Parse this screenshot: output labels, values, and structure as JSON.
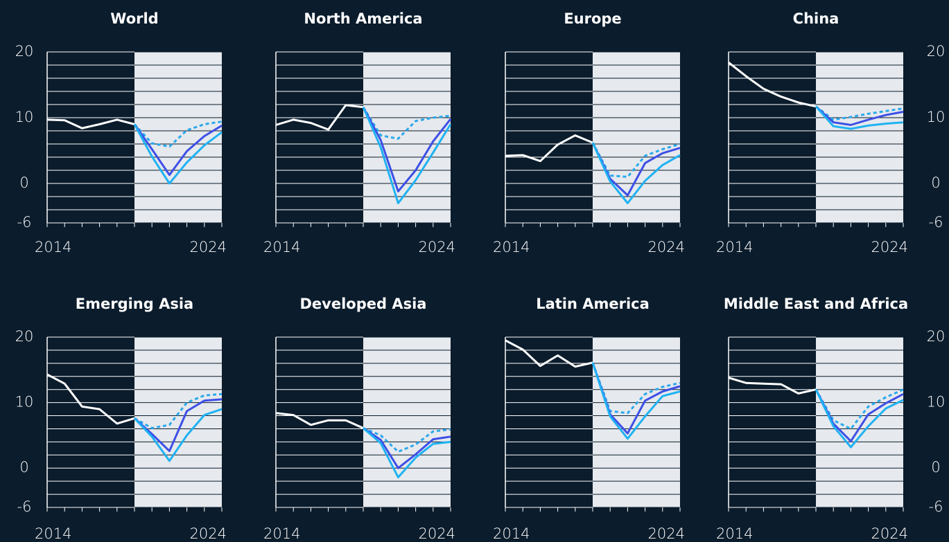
{
  "chart_data": [
    {
      "type": "line",
      "title": "World",
      "x": [
        2014,
        2015,
        2016,
        2017,
        2018,
        2019,
        2020,
        2021,
        2022,
        2023,
        2024
      ],
      "xticks": [
        2014,
        2024
      ],
      "ylim": [
        -6,
        20
      ],
      "yticks": [
        20,
        10,
        0,
        -6
      ],
      "minor_yticks": [
        -4,
        -2,
        2,
        4,
        6,
        8,
        12,
        14,
        16,
        18
      ],
      "shaded_from": 2019,
      "series": [
        {
          "color": "#ffffff",
          "values": [
            9.7,
            9.6,
            8.4,
            9.0,
            9.7,
            9.0,
            null,
            null,
            null,
            null,
            null
          ]
        },
        {
          "color": "#29a8ec",
          "style": "dashed",
          "values": [
            null,
            null,
            null,
            null,
            null,
            9.0,
            6.1,
            5.6,
            8.1,
            9.0,
            9.4
          ]
        },
        {
          "color": "#3d4fe6",
          "values": [
            null,
            null,
            null,
            null,
            null,
            9.0,
            5.2,
            1.3,
            4.9,
            7.2,
            8.8
          ]
        },
        {
          "color": "#1fb2f2",
          "values": [
            null,
            null,
            null,
            null,
            null,
            9.0,
            4.1,
            0.0,
            3.2,
            5.8,
            7.8
          ]
        }
      ]
    },
    {
      "type": "line",
      "title": "North America",
      "x": [
        2014,
        2015,
        2016,
        2017,
        2018,
        2019,
        2020,
        2021,
        2022,
        2023,
        2024
      ],
      "xticks": [
        2014,
        2024
      ],
      "ylim": [
        -6,
        20
      ],
      "yticks": [
        20,
        10,
        0,
        -6
      ],
      "minor_yticks": [
        -4,
        -2,
        2,
        4,
        6,
        8,
        12,
        14,
        16,
        18
      ],
      "shaded_from": 2019,
      "series": [
        {
          "color": "#ffffff",
          "values": [
            8.9,
            9.7,
            9.2,
            8.2,
            11.9,
            11.6,
            null,
            null,
            null,
            null,
            null
          ]
        },
        {
          "color": "#29a8ec",
          "style": "dashed",
          "values": [
            null,
            null,
            null,
            null,
            null,
            11.6,
            7.3,
            6.8,
            9.5,
            10.0,
            10.3
          ]
        },
        {
          "color": "#3d4fe6",
          "values": [
            null,
            null,
            null,
            null,
            null,
            11.6,
            6.6,
            -1.2,
            2.0,
            6.4,
            9.8
          ]
        },
        {
          "color": "#1fb2f2",
          "values": [
            null,
            null,
            null,
            null,
            null,
            11.6,
            5.5,
            -3.0,
            0.5,
            4.7,
            9.0
          ]
        }
      ]
    },
    {
      "type": "line",
      "title": "Europe",
      "x": [
        2014,
        2015,
        2016,
        2017,
        2018,
        2019,
        2020,
        2021,
        2022,
        2023,
        2024
      ],
      "xticks": [
        2014,
        2024
      ],
      "ylim": [
        -6,
        20
      ],
      "yticks": [
        20,
        10,
        0,
        -6
      ],
      "minor_yticks": [
        -4,
        -2,
        2,
        4,
        6,
        8,
        12,
        14,
        16,
        18
      ],
      "shaded_from": 2019,
      "series": [
        {
          "color": "#ffffff",
          "values": [
            4.2,
            4.3,
            3.4,
            5.9,
            7.3,
            6.2,
            null,
            null,
            null,
            null,
            null
          ]
        },
        {
          "color": "#29a8ec",
          "style": "dashed",
          "values": [
            null,
            null,
            null,
            null,
            null,
            6.2,
            1.2,
            1.0,
            4.2,
            5.2,
            6.0
          ]
        },
        {
          "color": "#3d4fe6",
          "values": [
            null,
            null,
            null,
            null,
            null,
            6.2,
            0.7,
            -1.8,
            3.1,
            4.6,
            5.4
          ]
        },
        {
          "color": "#1fb2f2",
          "values": [
            null,
            null,
            null,
            null,
            null,
            6.2,
            0.3,
            -3.0,
            0.4,
            2.8,
            4.3
          ]
        }
      ]
    },
    {
      "type": "line",
      "title": "China",
      "x": [
        2014,
        2015,
        2016,
        2017,
        2018,
        2019,
        2020,
        2021,
        2022,
        2023,
        2024
      ],
      "xticks": [
        2014,
        2024
      ],
      "ylim": [
        -6,
        20
      ],
      "yticks": [
        20,
        10,
        0,
        -6
      ],
      "minor_yticks": [
        -4,
        -2,
        2,
        4,
        6,
        8,
        12,
        14,
        16,
        18
      ],
      "shaded_from": 2019,
      "series": [
        {
          "color": "#ffffff",
          "values": [
            18.4,
            16.3,
            14.4,
            13.2,
            12.3,
            11.7,
            null,
            null,
            null,
            null,
            null
          ]
        },
        {
          "color": "#29a8ec",
          "style": "dashed",
          "values": [
            null,
            null,
            null,
            null,
            null,
            11.7,
            9.7,
            10.1,
            10.6,
            11.0,
            11.4
          ]
        },
        {
          "color": "#3d4fe6",
          "values": [
            null,
            null,
            null,
            null,
            null,
            11.7,
            9.3,
            8.9,
            9.7,
            10.4,
            10.9
          ]
        },
        {
          "color": "#1fb2f2",
          "values": [
            null,
            null,
            null,
            null,
            null,
            11.7,
            8.7,
            8.3,
            8.8,
            9.1,
            9.3
          ]
        }
      ]
    },
    {
      "type": "line",
      "title": "Emerging Asia",
      "x": [
        2014,
        2015,
        2016,
        2017,
        2018,
        2019,
        2020,
        2021,
        2022,
        2023,
        2024
      ],
      "xticks": [
        2014,
        2024
      ],
      "ylim": [
        -6,
        20
      ],
      "yticks": [
        20,
        10,
        0,
        -6
      ],
      "minor_yticks": [
        -4,
        -2,
        2,
        4,
        6,
        8,
        12,
        14,
        16,
        18
      ],
      "shaded_from": 2019,
      "series": [
        {
          "color": "#ffffff",
          "values": [
            14.3,
            12.9,
            9.4,
            9.0,
            6.8,
            7.6,
            null,
            null,
            null,
            null,
            null
          ]
        },
        {
          "color": "#29a8ec",
          "style": "dashed",
          "values": [
            null,
            null,
            null,
            null,
            null,
            7.6,
            6.1,
            6.6,
            10.0,
            11.1,
            11.3
          ]
        },
        {
          "color": "#3d4fe6",
          "values": [
            null,
            null,
            null,
            null,
            null,
            7.6,
            5.2,
            2.6,
            8.7,
            10.3,
            10.5
          ]
        },
        {
          "color": "#1fb2f2",
          "values": [
            null,
            null,
            null,
            null,
            null,
            7.6,
            4.8,
            1.1,
            5.0,
            8.1,
            9.0
          ]
        }
      ]
    },
    {
      "type": "line",
      "title": "Developed Asia",
      "x": [
        2014,
        2015,
        2016,
        2017,
        2018,
        2019,
        2020,
        2021,
        2022,
        2023,
        2024
      ],
      "xticks": [
        2014,
        2024
      ],
      "ylim": [
        -6,
        20
      ],
      "yticks": [
        20,
        10,
        0,
        -6
      ],
      "minor_yticks": [
        -4,
        -2,
        2,
        4,
        6,
        8,
        12,
        14,
        16,
        18
      ],
      "shaded_from": 2019,
      "series": [
        {
          "color": "#ffffff",
          "values": [
            8.4,
            8.1,
            6.6,
            7.3,
            7.3,
            6.1,
            null,
            null,
            null,
            null,
            null
          ]
        },
        {
          "color": "#29a8ec",
          "style": "dashed",
          "values": [
            null,
            null,
            null,
            null,
            null,
            6.1,
            5.0,
            2.5,
            3.6,
            5.6,
            5.9
          ]
        },
        {
          "color": "#3d4fe6",
          "values": [
            null,
            null,
            null,
            null,
            null,
            6.1,
            4.3,
            0.0,
            2.1,
            4.4,
            4.8
          ]
        },
        {
          "color": "#1fb2f2",
          "values": [
            null,
            null,
            null,
            null,
            null,
            6.1,
            3.8,
            -1.4,
            1.6,
            3.7,
            4.0
          ]
        }
      ]
    },
    {
      "type": "line",
      "title": "Latin America",
      "x": [
        2014,
        2015,
        2016,
        2017,
        2018,
        2019,
        2020,
        2021,
        2022,
        2023,
        2024
      ],
      "xticks": [
        2014,
        2024
      ],
      "ylim": [
        -6,
        20
      ],
      "yticks": [
        20,
        10,
        0,
        -6
      ],
      "minor_yticks": [
        -4,
        -2,
        2,
        4,
        6,
        8,
        12,
        14,
        16,
        18
      ],
      "shaded_from": 2019,
      "series": [
        {
          "color": "#ffffff",
          "values": [
            19.5,
            18.1,
            15.6,
            17.2,
            15.5,
            16.1,
            null,
            null,
            null,
            null,
            null
          ]
        },
        {
          "color": "#29a8ec",
          "style": "dashed",
          "values": [
            null,
            null,
            null,
            null,
            null,
            16.1,
            8.7,
            8.4,
            11.3,
            12.4,
            13.0
          ]
        },
        {
          "color": "#3d4fe6",
          "values": [
            null,
            null,
            null,
            null,
            null,
            16.1,
            8.2,
            5.3,
            10.3,
            11.7,
            12.5
          ]
        },
        {
          "color": "#1fb2f2",
          "values": [
            null,
            null,
            null,
            null,
            null,
            16.1,
            7.9,
            4.5,
            7.9,
            11.0,
            11.7
          ]
        }
      ]
    },
    {
      "type": "line",
      "title": "Middle East and Africa",
      "x": [
        2014,
        2015,
        2016,
        2017,
        2018,
        2019,
        2020,
        2021,
        2022,
        2023,
        2024
      ],
      "xticks": [
        2014,
        2024
      ],
      "ylim": [
        -6,
        20
      ],
      "yticks": [
        20,
        10,
        0,
        -6
      ],
      "minor_yticks": [
        -4,
        -2,
        2,
        4,
        6,
        8,
        12,
        14,
        16,
        18
      ],
      "shaded_from": 2019,
      "series": [
        {
          "color": "#ffffff",
          "values": [
            13.8,
            13.0,
            12.9,
            12.8,
            11.4,
            12.0,
            null,
            null,
            null,
            null,
            null
          ]
        },
        {
          "color": "#29a8ec",
          "style": "dashed",
          "values": [
            null,
            null,
            null,
            null,
            null,
            12.0,
            7.3,
            6.0,
            9.4,
            10.8,
            12.0
          ]
        },
        {
          "color": "#3d4fe6",
          "values": [
            null,
            null,
            null,
            null,
            null,
            12.0,
            6.8,
            4.1,
            8.2,
            9.9,
            11.3
          ]
        },
        {
          "color": "#1fb2f2",
          "values": [
            null,
            null,
            null,
            null,
            null,
            12.0,
            6.4,
            3.2,
            6.4,
            9.1,
            10.4
          ]
        }
      ]
    }
  ]
}
